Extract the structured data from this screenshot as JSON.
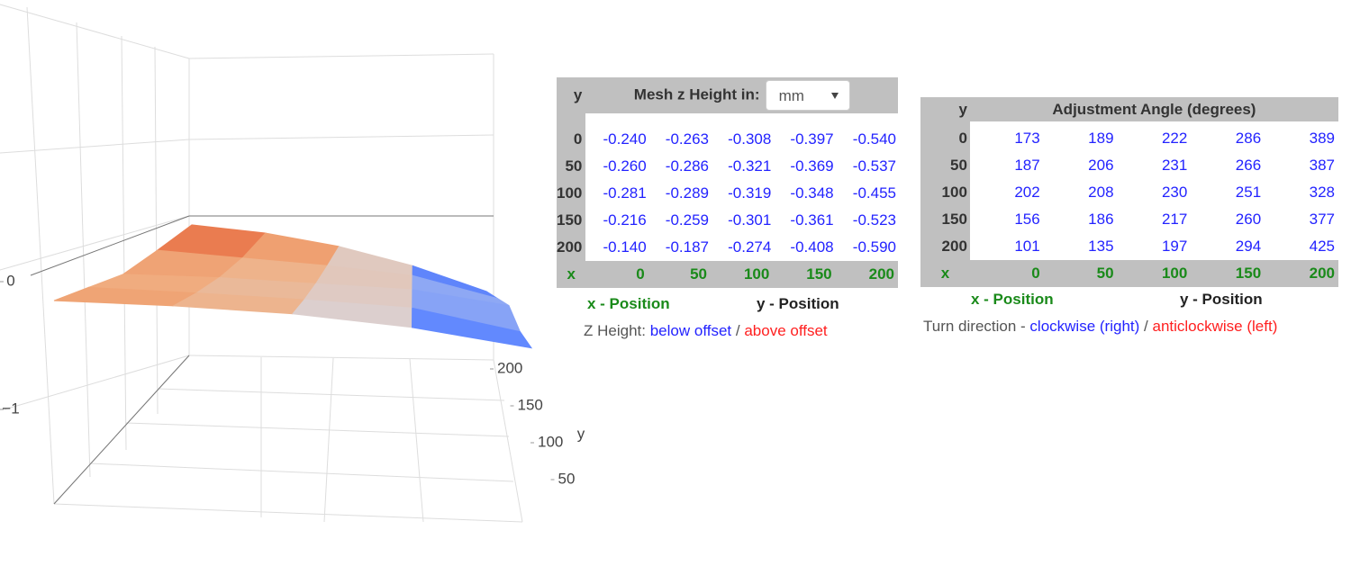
{
  "plot": {
    "zticks": [
      0,
      {
        "value": -1,
        "label": "−1"
      }
    ],
    "yticks": [
      200,
      150,
      100,
      50
    ],
    "y_label": "y"
  },
  "mesh_table": {
    "corner": "y",
    "title": "Mesh z Height in:",
    "unit": "mm",
    "rows": [
      {
        "y": "0",
        "values": [
          "-0.240",
          "-0.263",
          "-0.308",
          "-0.397",
          "-0.540"
        ]
      },
      {
        "y": "50",
        "values": [
          "-0.260",
          "-0.286",
          "-0.321",
          "-0.369",
          "-0.537"
        ]
      },
      {
        "y": "100",
        "values": [
          "-0.281",
          "-0.289",
          "-0.319",
          "-0.348",
          "-0.455"
        ]
      },
      {
        "y": "150",
        "values": [
          "-0.216",
          "-0.259",
          "-0.301",
          "-0.361",
          "-0.523"
        ]
      },
      {
        "y": "200",
        "values": [
          "-0.140",
          "-0.187",
          "-0.274",
          "-0.408",
          "-0.590"
        ]
      }
    ],
    "x_label": "x",
    "x_values": [
      "0",
      "50",
      "100",
      "150",
      "200"
    ],
    "x_caption": "x - Position",
    "y_caption": "y - Position",
    "legend": {
      "prefix": "Z Height:",
      "below": "below offset",
      "sep": "/",
      "above": "above offset"
    }
  },
  "angle_table": {
    "corner": "y",
    "title": "Adjustment Angle (degrees)",
    "rows": [
      {
        "y": "0",
        "values": [
          173,
          189,
          222,
          286,
          389
        ]
      },
      {
        "y": "50",
        "values": [
          187,
          206,
          231,
          266,
          387
        ]
      },
      {
        "y": "100",
        "values": [
          202,
          208,
          230,
          251,
          328
        ]
      },
      {
        "y": "150",
        "values": [
          156,
          186,
          217,
          260,
          377
        ]
      },
      {
        "y": "200",
        "values": [
          101,
          135,
          197,
          294,
          425
        ]
      }
    ],
    "x_label": "x",
    "x_values": [
      "0",
      "50",
      "100",
      "150",
      "200"
    ],
    "x_caption": "x - Position",
    "y_caption": "y - Position",
    "legend": {
      "prefix": "Turn direction -",
      "below": "clockwise (right)",
      "sep": "/",
      "above": "anticlockwise (left)"
    }
  }
}
